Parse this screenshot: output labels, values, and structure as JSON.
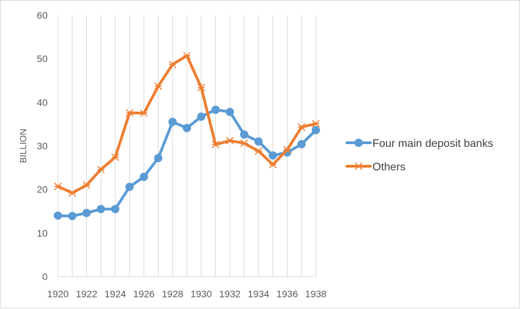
{
  "chart_data": {
    "type": "line",
    "title": "",
    "xlabel": "",
    "ylabel": "BILLION",
    "ylim": [
      0,
      60
    ],
    "yticks": [
      "0",
      "10",
      "20",
      "30",
      "40",
      "50",
      "60"
    ],
    "xticks": [
      "1920",
      "1922",
      "1924",
      "1926",
      "1928",
      "1930",
      "1932",
      "1934",
      "1936",
      "1938"
    ],
    "x": [
      1920,
      1921,
      1922,
      1923,
      1924,
      1925,
      1926,
      1927,
      1928,
      1929,
      1930,
      1931,
      1932,
      1933,
      1934,
      1935,
      1936,
      1937,
      1938
    ],
    "grid": "vertical",
    "legend_position": "right",
    "series": [
      {
        "name": "Four main deposit banks",
        "color": "#5b9bd5",
        "marker": "circle",
        "values": [
          14.0,
          13.9,
          14.6,
          15.5,
          15.5,
          20.6,
          22.9,
          27.2,
          35.5,
          34.1,
          36.7,
          38.3,
          37.8,
          32.6,
          31.0,
          27.8,
          28.5,
          30.4,
          33.6
        ]
      },
      {
        "name": "Others",
        "color": "#ed7d31",
        "marker": "star",
        "values": [
          20.7,
          19.2,
          21.0,
          24.6,
          27.4,
          37.6,
          37.5,
          43.7,
          48.7,
          50.7,
          43.4,
          30.3,
          31.2,
          30.6,
          28.8,
          25.7,
          29.1,
          34.3,
          35.1
        ]
      }
    ]
  }
}
